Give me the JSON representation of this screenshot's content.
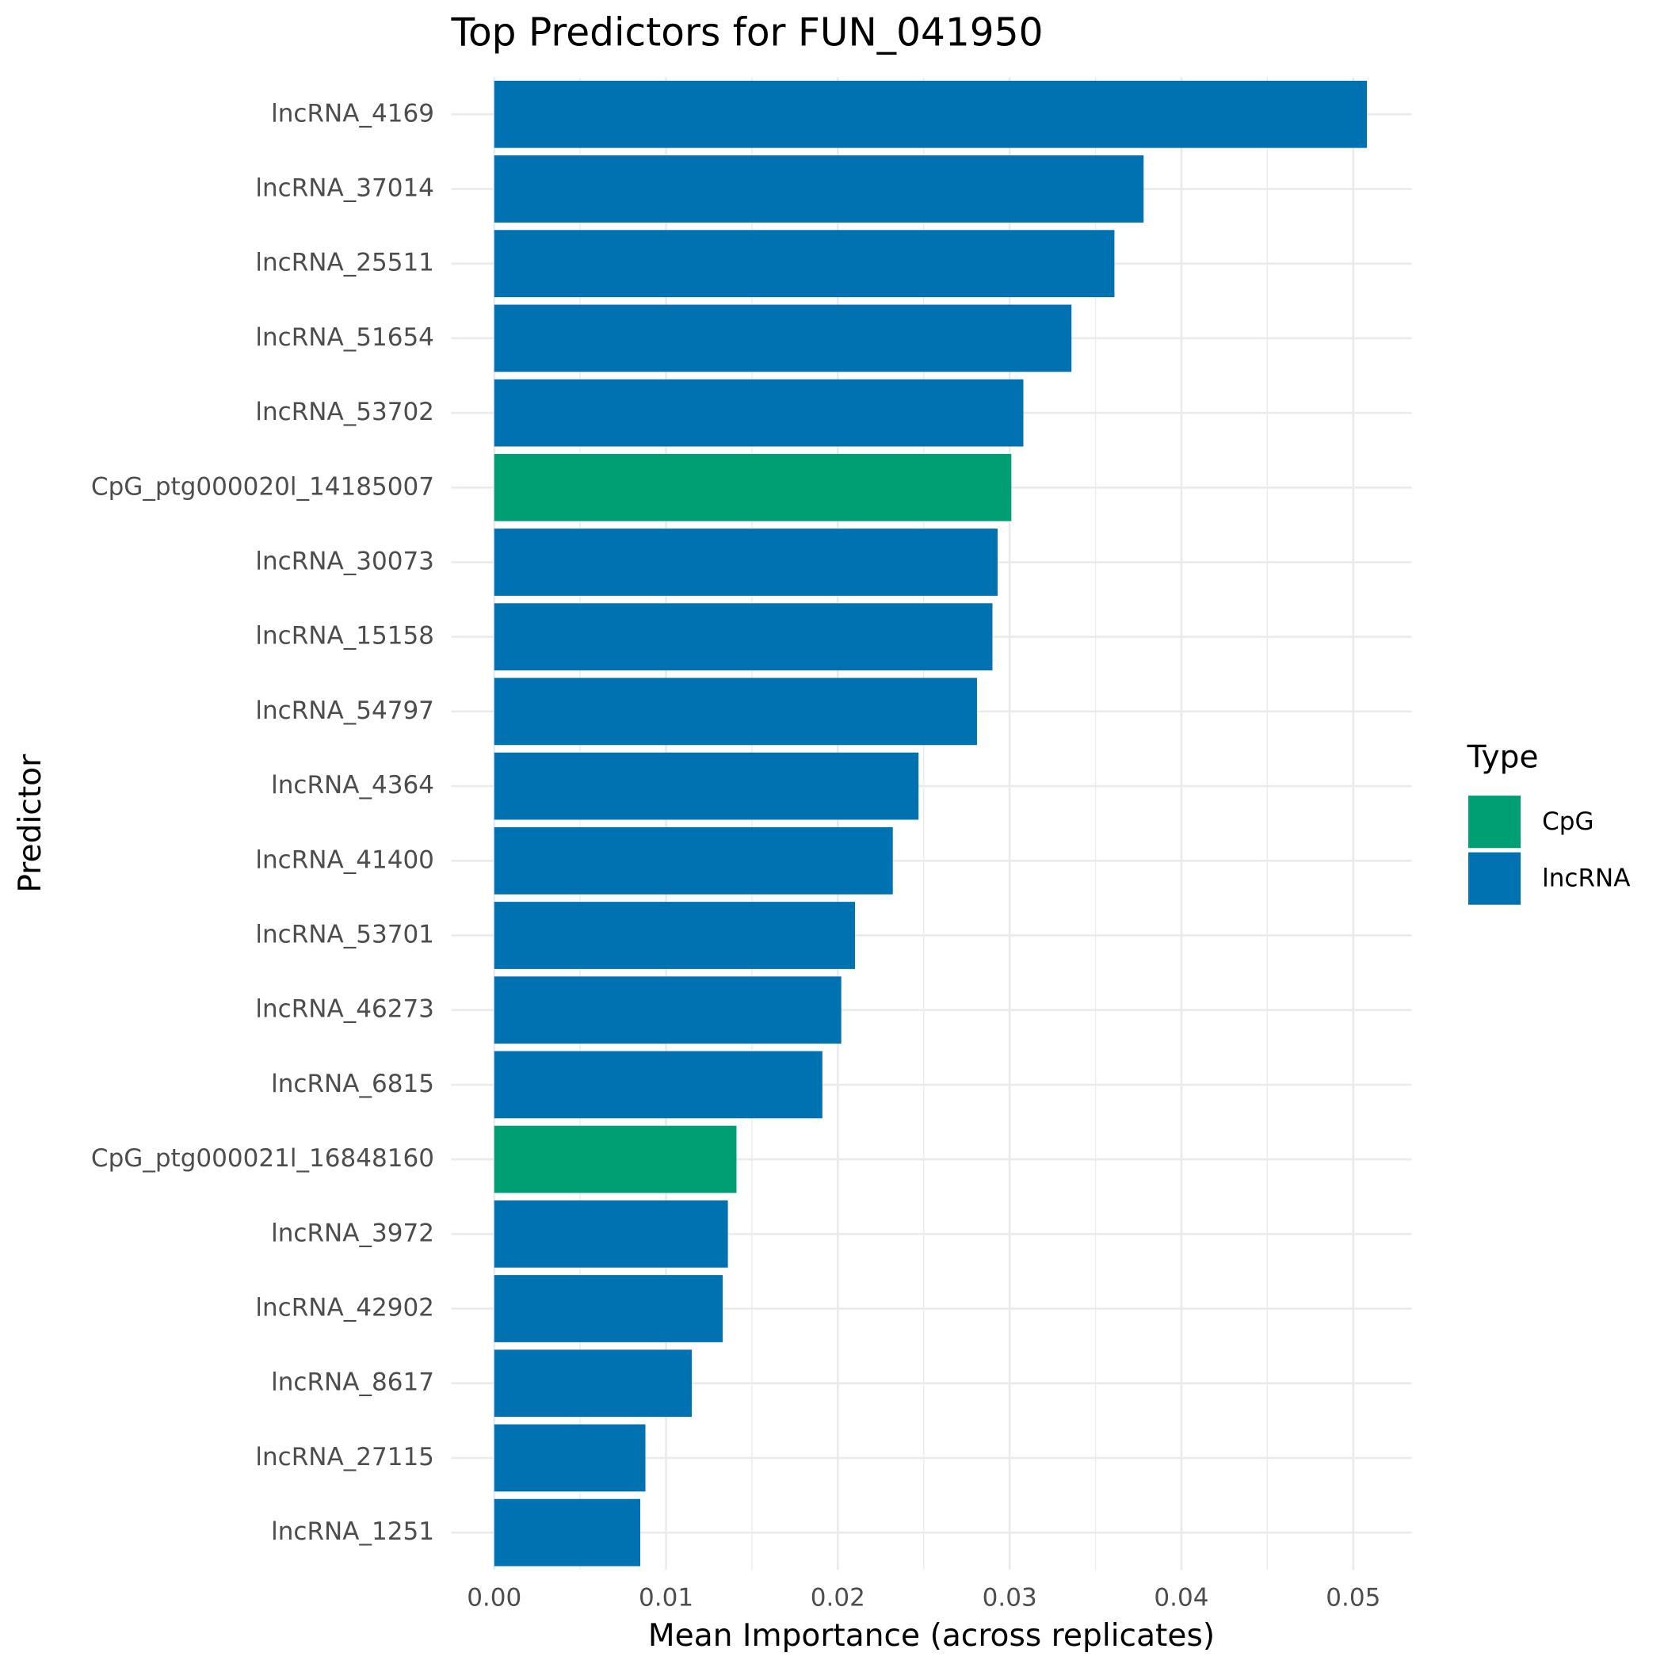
{
  "chart_data": {
    "type": "bar",
    "orientation": "horizontal",
    "title": "Top Predictors for FUN_041950",
    "x_label": "Mean Importance (across replicates)",
    "y_label": "Predictor",
    "legend_title": "Type",
    "categories": [
      "lncRNA_4169",
      "lncRNA_37014",
      "lncRNA_25511",
      "lncRNA_51654",
      "lncRNA_53702",
      "CpG_ptg000020l_14185007",
      "lncRNA_30073",
      "lncRNA_15158",
      "lncRNA_54797",
      "lncRNA_4364",
      "lncRNA_41400",
      "lncRNA_53701",
      "lncRNA_46273",
      "lncRNA_6815",
      "CpG_ptg000021l_16848160",
      "lncRNA_3972",
      "lncRNA_42902",
      "lncRNA_8617",
      "lncRNA_27115",
      "lncRNA_1251"
    ],
    "series": [
      {
        "name": "CpG",
        "color": "#009E73",
        "values": [
          null,
          null,
          null,
          null,
          null,
          0.0301,
          null,
          null,
          null,
          null,
          null,
          null,
          null,
          null,
          0.0141,
          null,
          null,
          null,
          null,
          null
        ]
      },
      {
        "name": "lncRNA",
        "color": "#0072B2",
        "values": [
          0.0508,
          0.0378,
          0.0361,
          0.0336,
          0.0308,
          null,
          0.0293,
          0.029,
          0.0281,
          0.0247,
          0.0232,
          0.021,
          0.0202,
          0.0191,
          null,
          0.0136,
          0.0133,
          0.0115,
          0.0088,
          0.0085
        ]
      }
    ],
    "xlim": [
      -0.0025,
      0.0534
    ],
    "xticks": [
      {
        "value": 0,
        "label": "0.00"
      },
      0.01,
      0.02,
      0.03,
      0.04,
      0.05
    ],
    "grid": true
  }
}
